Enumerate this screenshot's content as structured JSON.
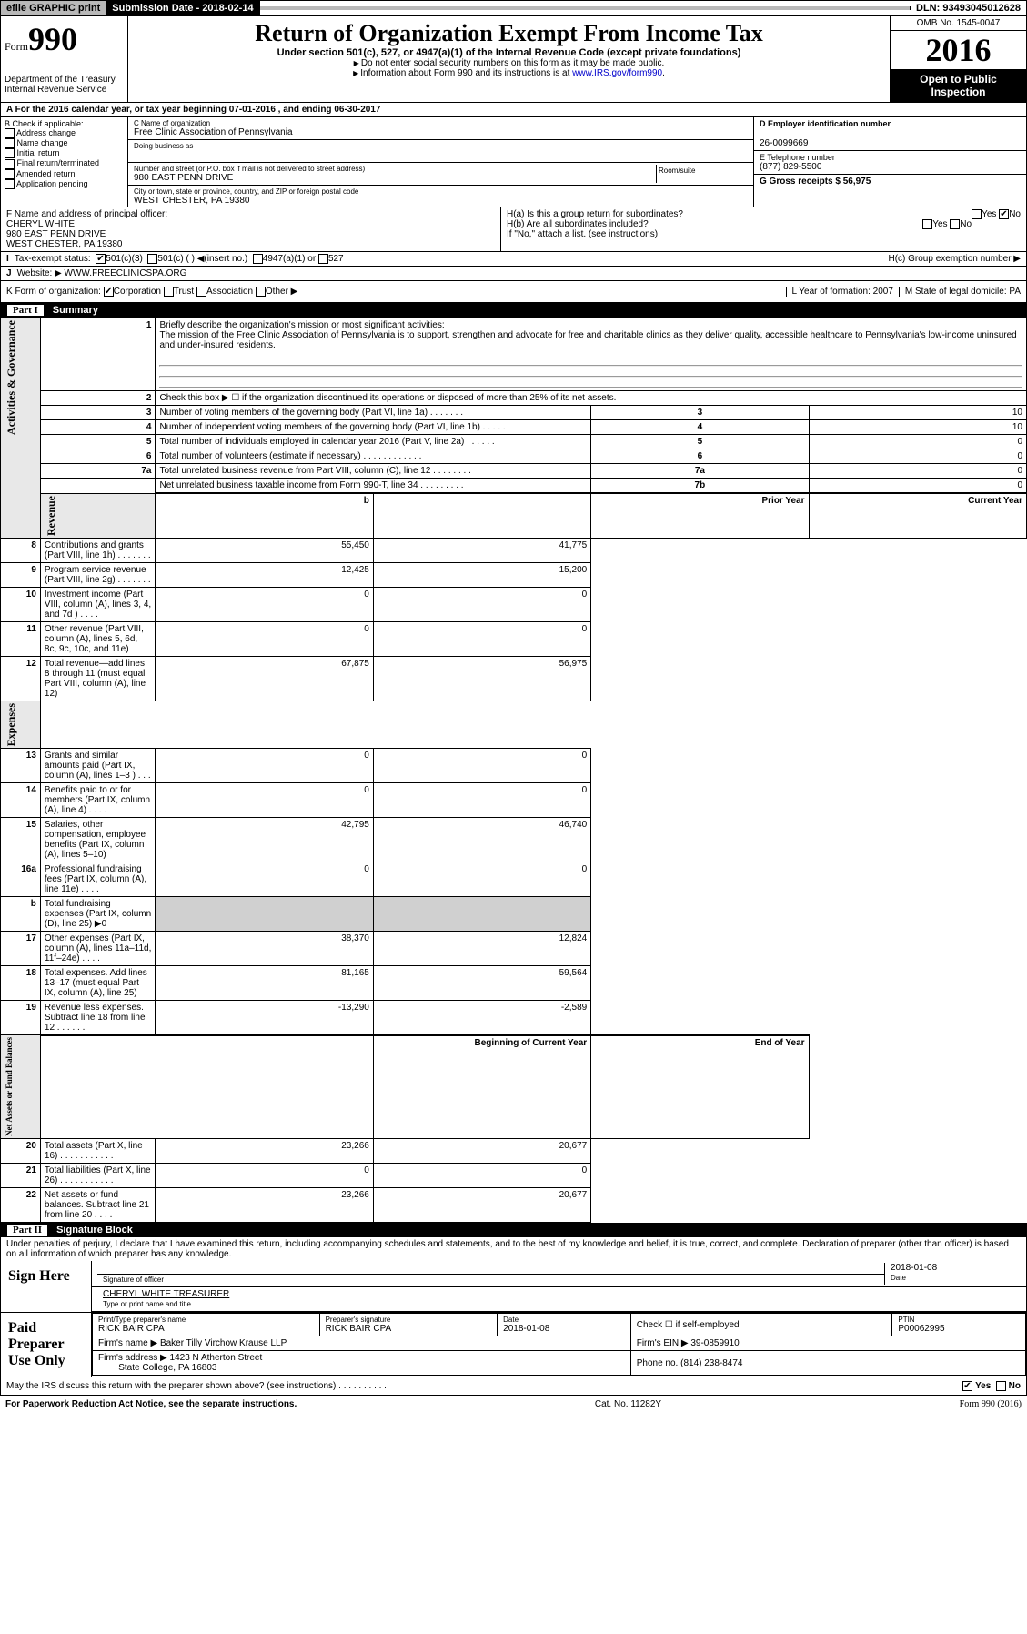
{
  "top": {
    "efile": "efile GRAPHIC print",
    "subdate_lbl": "Submission Date - 2018-02-14",
    "dln": "DLN: 93493045012628"
  },
  "header": {
    "form_small": "Form",
    "form_no": "990",
    "dept": "Department of the Treasury\nInternal Revenue Service",
    "title": "Return of Organization Exempt From Income Tax",
    "subtitle": "Under section 501(c), 527, or 4947(a)(1) of the Internal Revenue Code (except private foundations)",
    "note1": "Do not enter social security numbers on this form as it may be made public.",
    "note2": "Information about Form 990 and its instructions is at ",
    "note2_link": "www.IRS.gov/form990",
    "omb": "OMB No. 1545-0047",
    "year": "2016",
    "open": "Open to Public Inspection"
  },
  "row_a": "A For the 2016 calendar year, or tax year beginning 07-01-2016   , and ending 06-30-2017",
  "b": {
    "label": "B Check if applicable:",
    "opts": [
      "Address change",
      "Name change",
      "Initial return",
      "Final return/terminated",
      "Amended return",
      "Application pending"
    ]
  },
  "c": {
    "name_lbl": "C Name of organization",
    "name": "Free Clinic Association of Pennsylvania",
    "dba_lbl": "Doing business as",
    "addr_lbl": "Number and street (or P.O. box if mail is not delivered to street address)",
    "room_lbl": "Room/suite",
    "addr": "980 EAST PENN DRIVE",
    "city_lbl": "City or town, state or province, country, and ZIP or foreign postal code",
    "city": "WEST CHESTER, PA  19380"
  },
  "d": {
    "lbl": "D Employer identification number",
    "val": "26-0099669"
  },
  "e": {
    "lbl": "E Telephone number",
    "val": "(877) 829-5500"
  },
  "g": {
    "lbl": "G Gross receipts $ 56,975"
  },
  "f": {
    "lbl": "F  Name and address of principal officer:",
    "name": "CHERYL WHITE",
    "addr1": "980 EAST PENN DRIVE",
    "addr2": "WEST CHESTER, PA  19380"
  },
  "h": {
    "a": "H(a)  Is this a group return for subordinates?",
    "b": "H(b)  Are all subordinates included?",
    "b_note": "If \"No,\" attach a list. (see instructions)",
    "c": "H(c)  Group exemption number ▶",
    "yes": "Yes",
    "no": "No"
  },
  "i": {
    "lbl": "Tax-exempt status:",
    "o1": "501(c)(3)",
    "o2": "501(c) (  ) ◀(insert no.)",
    "o3": "4947(a)(1) or",
    "o4": "527"
  },
  "j": {
    "lbl": "Website: ▶",
    "val": "WWW.FREECLINICSPA.ORG"
  },
  "k": {
    "lbl": "K Form of organization:",
    "o1": "Corporation",
    "o2": "Trust",
    "o3": "Association",
    "o4": "Other ▶"
  },
  "l": {
    "lbl": "L Year of formation: 2007"
  },
  "m": {
    "lbl": "M State of legal domicile: PA"
  },
  "part1": {
    "num": "Part I",
    "title": "Summary"
  },
  "summary": {
    "q1": "Briefly describe the organization's mission or most significant activities:",
    "mission": "The mission of the Free Clinic Association of Pennsylvania is to support, strengthen and advocate for free and charitable clinics as they deliver quality, accessible healthcare to Pennsylvania's low-income uninsured and under-insured residents.",
    "q2": "Check this box ▶ ☐  if the organization discontinued its operations or disposed of more than 25% of its net assets.",
    "rows_gov": [
      {
        "n": "3",
        "t": "Number of voting members of the governing body (Part VI, line 1a)   .    .    .    .    .    .    .",
        "box": "3",
        "v": "10"
      },
      {
        "n": "4",
        "t": "Number of independent voting members of the governing body (Part VI, line 1b)   .    .    .    .    .",
        "box": "4",
        "v": "10"
      },
      {
        "n": "5",
        "t": "Total number of individuals employed in calendar year 2016 (Part V, line 2a)   .    .    .    .    .    .",
        "box": "5",
        "v": "0"
      },
      {
        "n": "6",
        "t": "Total number of volunteers (estimate if necessary)    .    .    .    .    .    .    .    .    .    .    .    .",
        "box": "6",
        "v": "0"
      },
      {
        "n": "7a",
        "t": "Total unrelated business revenue from Part VIII, column (C), line 12   .    .    .    .    .    .    .    .",
        "box": "7a",
        "v": "0"
      },
      {
        "n": "",
        "t": "Net unrelated business taxable income from Form 990-T, line 34   .    .    .    .    .    .    .    .    .",
        "box": "7b",
        "v": "0"
      }
    ],
    "col_py": "Prior Year",
    "col_cy": "Current Year",
    "rows_rev": [
      {
        "n": "8",
        "t": "Contributions and grants (Part VIII, line 1h)   .    .    .    .    .    .    .",
        "py": "55,450",
        "cy": "41,775"
      },
      {
        "n": "9",
        "t": "Program service revenue (Part VIII, line 2g)   .    .    .    .    .    .    .",
        "py": "12,425",
        "cy": "15,200"
      },
      {
        "n": "10",
        "t": "Investment income (Part VIII, column (A), lines 3, 4, and 7d )   .    .    .    .",
        "py": "0",
        "cy": "0"
      },
      {
        "n": "11",
        "t": "Other revenue (Part VIII, column (A), lines 5, 6d, 8c, 9c, 10c, and 11e)",
        "py": "0",
        "cy": "0"
      },
      {
        "n": "12",
        "t": "Total revenue—add lines 8 through 11 (must equal Part VIII, column (A), line 12)",
        "py": "67,875",
        "cy": "56,975"
      }
    ],
    "rows_exp": [
      {
        "n": "13",
        "t": "Grants and similar amounts paid (Part IX, column (A), lines 1–3 )   .    .    .",
        "py": "0",
        "cy": "0"
      },
      {
        "n": "14",
        "t": "Benefits paid to or for members (Part IX, column (A), line 4)   .    .    .    .",
        "py": "0",
        "cy": "0"
      },
      {
        "n": "15",
        "t": "Salaries, other compensation, employee benefits (Part IX, column (A), lines 5–10)",
        "py": "42,795",
        "cy": "46,740"
      },
      {
        "n": "16a",
        "t": "Professional fundraising fees (Part IX, column (A), line 11e)   .    .    .    .",
        "py": "0",
        "cy": "0"
      },
      {
        "n": "b",
        "t": "Total fundraising expenses (Part IX, column (D), line 25) ▶0",
        "py": "",
        "cy": "",
        "shaded": true
      },
      {
        "n": "17",
        "t": "Other expenses (Part IX, column (A), lines 11a–11d, 11f–24e)   .    .    .    .",
        "py": "38,370",
        "cy": "12,824"
      },
      {
        "n": "18",
        "t": "Total expenses. Add lines 13–17 (must equal Part IX, column (A), line 25)",
        "py": "81,165",
        "cy": "59,564"
      },
      {
        "n": "19",
        "t": "Revenue less expenses. Subtract line 18 from line 12   .    .    .    .    .    .",
        "py": "-13,290",
        "cy": "-2,589"
      }
    ],
    "col_boy": "Beginning of Current Year",
    "col_eoy": "End of Year",
    "rows_net": [
      {
        "n": "20",
        "t": "Total assets (Part X, line 16)   .    .    .    .    .    .    .    .    .    .    .",
        "py": "23,266",
        "cy": "20,677"
      },
      {
        "n": "21",
        "t": "Total liabilities (Part X, line 26)   .    .    .    .    .    .    .    .    .    .    .",
        "py": "0",
        "cy": "0"
      },
      {
        "n": "22",
        "t": "Net assets or fund balances. Subtract line 21 from line 20   .    .    .    .    .",
        "py": "23,266",
        "cy": "20,677"
      }
    ],
    "side_gov": "Activities & Governance",
    "side_rev": "Revenue",
    "side_exp": "Expenses",
    "side_net": "Net Assets or Fund Balances"
  },
  "part2": {
    "num": "Part II",
    "title": "Signature Block"
  },
  "sig": {
    "decl": "Under penalties of perjury, I declare that I have examined this return, including accompanying schedules and statements, and to the best of my knowledge and belief, it is true, correct, and complete. Declaration of preparer (other than officer) is based on all information of which preparer has any knowledge.",
    "sign_here": "Sign Here",
    "sig_off": "Signature of officer",
    "date": "Date",
    "date_val": "2018-01-08",
    "name": "CHERYL WHITE  TREASURER",
    "name_lbl": "Type or print name and title",
    "paid": "Paid Preparer Use Only",
    "p_name_lbl": "Print/Type preparer's name",
    "p_name": "RICK BAIR CPA",
    "p_sig_lbl": "Preparer's signature",
    "p_sig": "RICK BAIR CPA",
    "p_date_lbl": "Date",
    "p_date": "2018-01-08",
    "p_check": "Check ☐ if self-employed",
    "ptin_lbl": "PTIN",
    "ptin": "P00062995",
    "firm_lbl": "Firm's name    ▶",
    "firm": "Baker Tilly Virchow Krause LLP",
    "ein_lbl": "Firm's EIN ▶",
    "ein": "39-0859910",
    "faddr_lbl": "Firm's address ▶",
    "faddr": "1423 N Atherton Street",
    "faddr2": "State College, PA  16803",
    "phone_lbl": "Phone no.",
    "phone": "(814) 238-8474",
    "discuss": "May the IRS discuss this return with the preparer shown above? (see instructions)    .    .    .    .    .    .    .    .    .    .",
    "yes": "Yes",
    "no": "No"
  },
  "footer": {
    "pra": "For Paperwork Reduction Act Notice, see the separate instructions.",
    "cat": "Cat. No. 11282Y",
    "form": "Form 990 (2016)"
  }
}
